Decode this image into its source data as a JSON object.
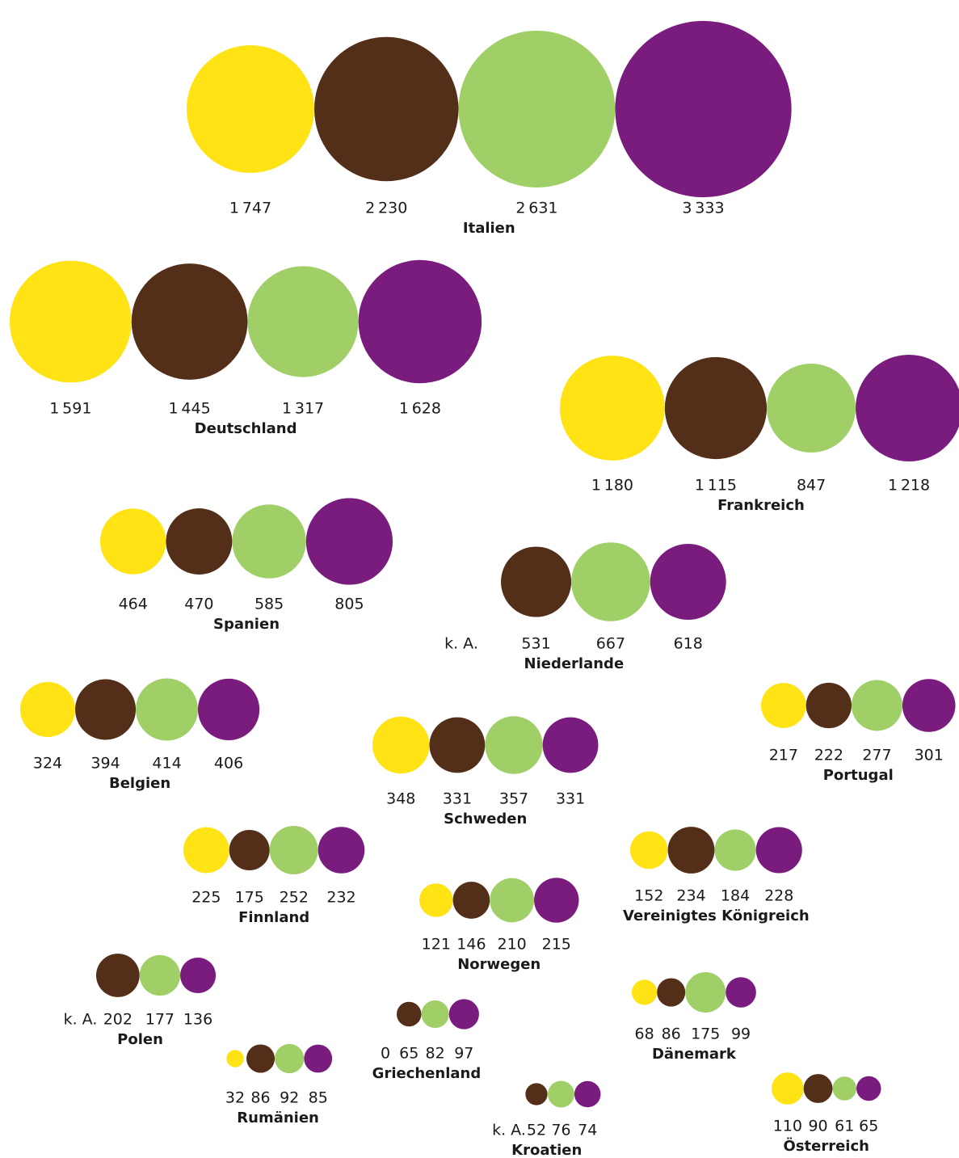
{
  "chart_data": {
    "type": "bubble",
    "colors": [
      "#ffe314",
      "#532e18",
      "#a0cf67",
      "#7a1c7e"
    ],
    "groups": [
      {
        "name": "Italien",
        "values": [
          1747,
          2230,
          2631,
          3333
        ],
        "value_labels": [
          "1 747",
          "2 230",
          "2 631",
          "3 333"
        ]
      },
      {
        "name": "Deutschland",
        "values": [
          1591,
          1445,
          1317,
          1628
        ],
        "value_labels": [
          "1 591",
          "1 445",
          "1 317",
          "1 628"
        ]
      },
      {
        "name": "Frankreich",
        "values": [
          1180,
          1115,
          847,
          1218
        ],
        "value_labels": [
          "1 180",
          "1 115",
          "847",
          "1 218"
        ]
      },
      {
        "name": "Spanien",
        "values": [
          464,
          470,
          585,
          805
        ],
        "value_labels": [
          "464",
          "470",
          "585",
          "805"
        ]
      },
      {
        "name": "Niederlande",
        "values": [
          null,
          531,
          667,
          618
        ],
        "value_labels": [
          "k. A.",
          "531",
          "667",
          "618"
        ]
      },
      {
        "name": "Belgien",
        "values": [
          324,
          394,
          414,
          406
        ],
        "value_labels": [
          "324",
          "394",
          "414",
          "406"
        ]
      },
      {
        "name": "Schweden",
        "values": [
          348,
          331,
          357,
          331
        ],
        "value_labels": [
          "348",
          "331",
          "357",
          "331"
        ]
      },
      {
        "name": "Portugal",
        "values": [
          217,
          222,
          277,
          301
        ],
        "value_labels": [
          "217",
          "222",
          "277",
          "301"
        ]
      },
      {
        "name": "Finnland",
        "values": [
          225,
          175,
          252,
          232
        ],
        "value_labels": [
          "225",
          "175",
          "252",
          "232"
        ]
      },
      {
        "name": "Vereinigtes Königreich",
        "values": [
          152,
          234,
          184,
          228
        ],
        "value_labels": [
          "152",
          "234",
          "184",
          "228"
        ]
      },
      {
        "name": "Norwegen",
        "values": [
          121,
          146,
          210,
          215
        ],
        "value_labels": [
          "121",
          "146",
          "210",
          "215"
        ]
      },
      {
        "name": "Polen",
        "values": [
          null,
          202,
          177,
          136
        ],
        "value_labels": [
          "k. A.",
          "202",
          "177",
          "136"
        ]
      },
      {
        "name": "Griechenland",
        "values": [
          0,
          65,
          82,
          97
        ],
        "value_labels": [
          "0",
          "65",
          "82",
          "97"
        ]
      },
      {
        "name": "Rumänien",
        "values": [
          32,
          86,
          92,
          85
        ],
        "value_labels": [
          "32",
          "86",
          "92",
          "85"
        ]
      },
      {
        "name": "Dänemark",
        "values": [
          68,
          86,
          175,
          99
        ],
        "value_labels": [
          "68",
          "86",
          "175",
          "99"
        ]
      },
      {
        "name": "Kroatien",
        "values": [
          null,
          52,
          76,
          74
        ],
        "value_labels": [
          "k. A.",
          "52",
          "76",
          "74"
        ]
      },
      {
        "name": "Österreich",
        "values": [
          110,
          90,
          61,
          65
        ],
        "value_labels": [
          "110",
          "90",
          "61",
          "65"
        ]
      }
    ]
  }
}
